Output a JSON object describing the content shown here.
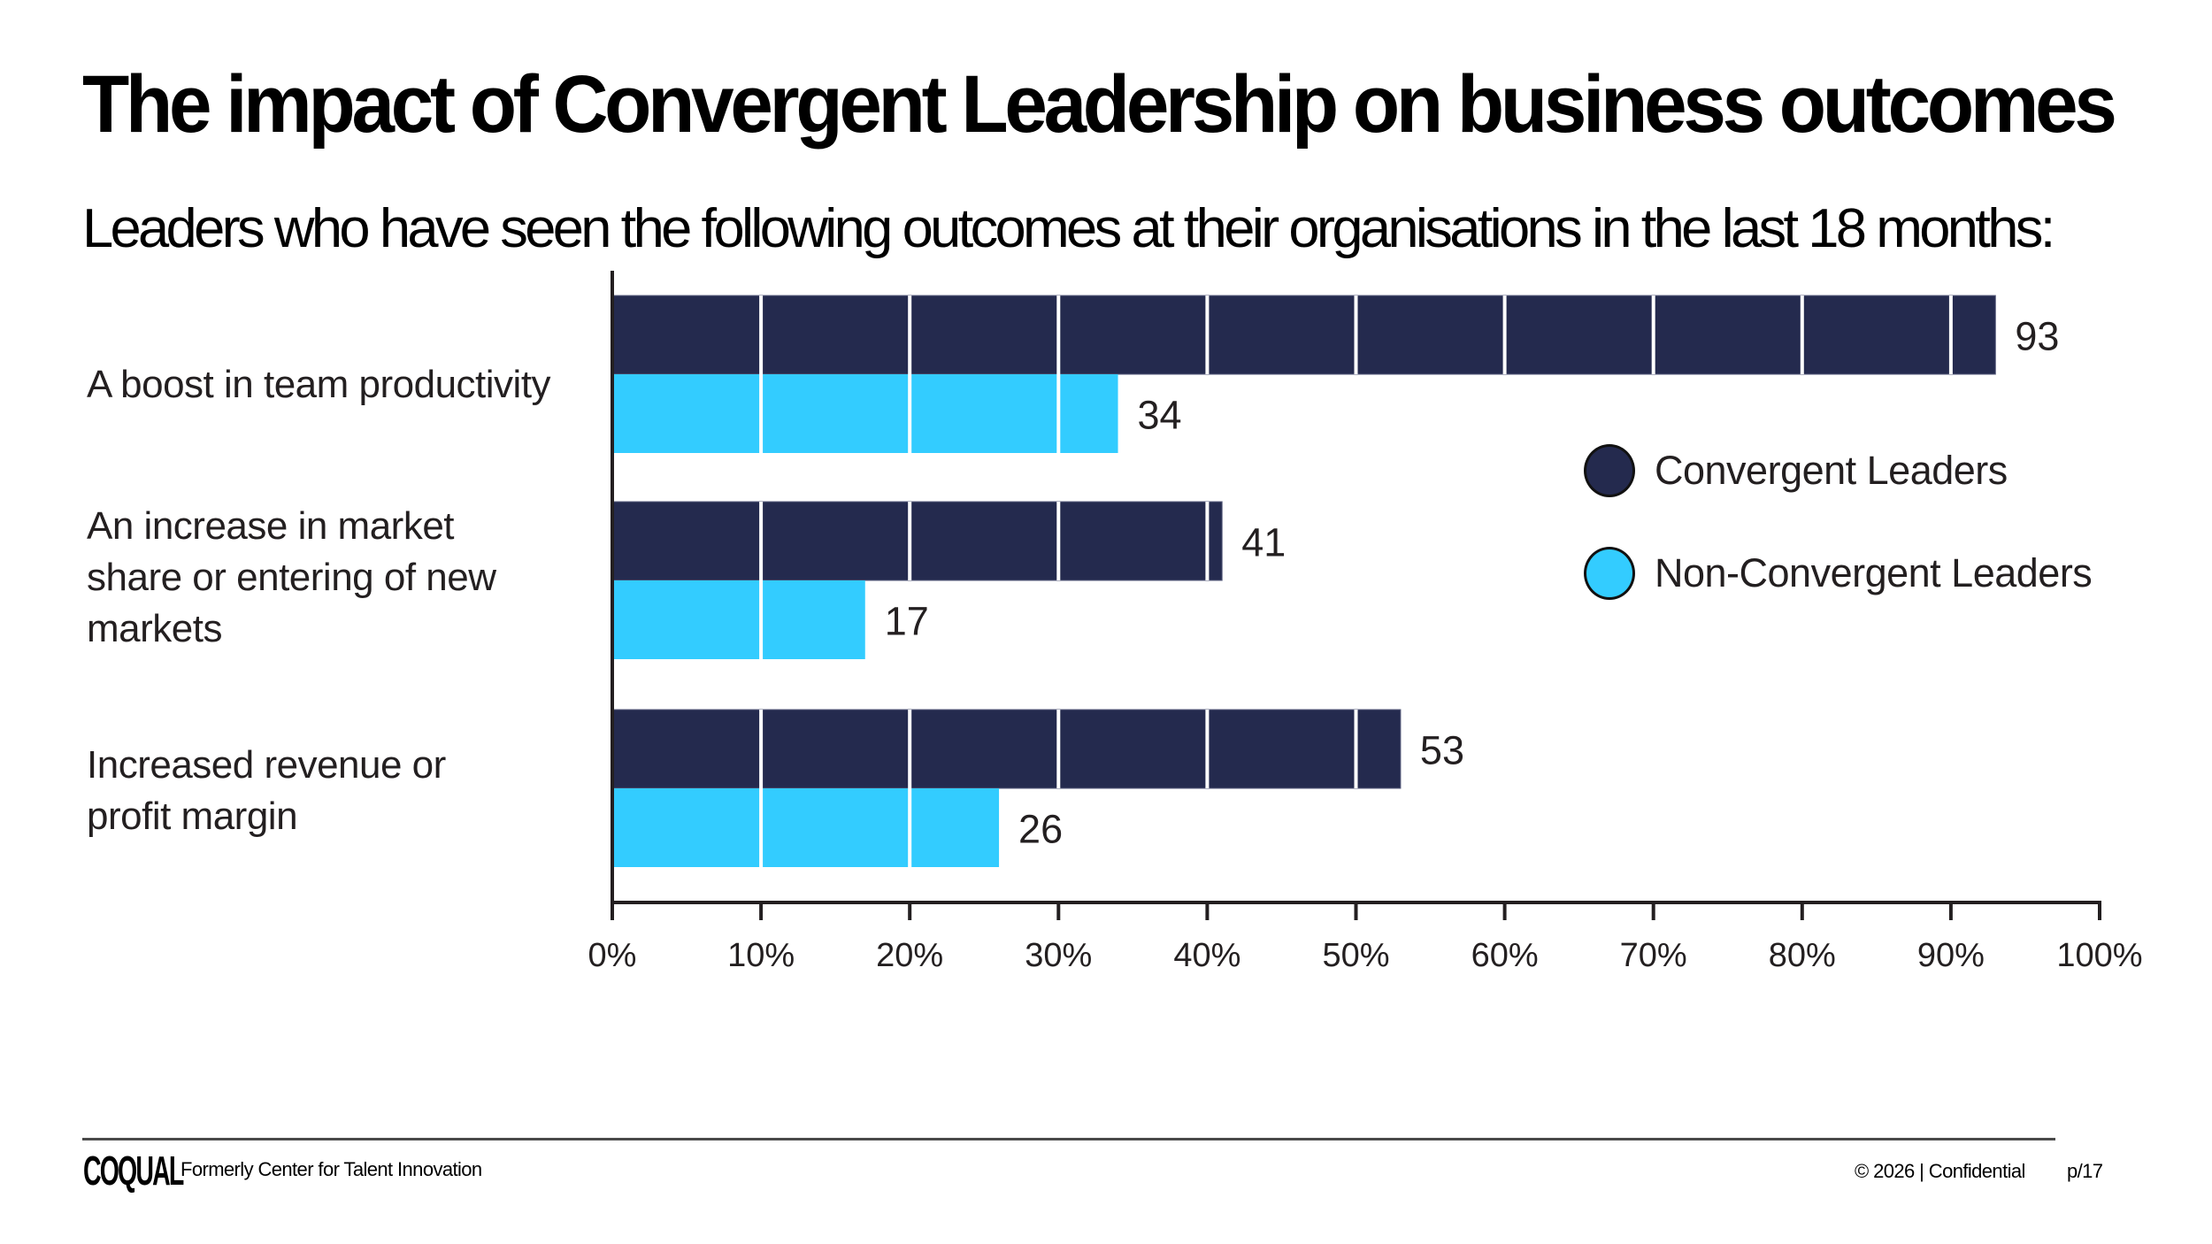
{
  "header": {
    "title": "The impact of Convergent Leadership on business outcomes",
    "subtitle": "Leaders who have seen the following outcomes at their organisations in the last 18 months:"
  },
  "colors": {
    "convergent": "#242A4E",
    "non_convergent": "#33CCFF",
    "text": "#231F20",
    "axis": "#231F20"
  },
  "chart_data": {
    "type": "bar",
    "orientation": "horizontal",
    "title": "The impact of Convergent Leadership on business outcomes",
    "subtitle": "Leaders who have seen the following outcomes at their organisations in the last 18 months:",
    "categories": [
      "A boost in team productivity",
      "An increase in market share or entering of new markets",
      "Increased revenue or profit margin"
    ],
    "category_lines": [
      [
        "A boost in team productivity"
      ],
      [
        "An increase in market",
        "share or entering of new",
        "markets"
      ],
      [
        "Increased revenue or",
        "profit margin"
      ]
    ],
    "series": [
      {
        "name": "Convergent Leaders",
        "values": [
          93,
          41,
          53
        ]
      },
      {
        "name": "Non-Convergent Leaders",
        "values": [
          34,
          17,
          26
        ]
      }
    ],
    "xlabel": "",
    "ylabel": "",
    "xlim": [
      0,
      100
    ],
    "x_ticks": [
      0,
      10,
      20,
      30,
      40,
      50,
      60,
      70,
      80,
      90,
      100
    ],
    "x_tick_labels": [
      "0%",
      "10%",
      "20%",
      "30%",
      "40%",
      "50%",
      "60%",
      "70%",
      "80%",
      "90%",
      "100%"
    ],
    "grid": "vertical white lines inside bars every 10%",
    "legend_position": "right-middle"
  },
  "legend": {
    "items": [
      {
        "label": "Convergent Leaders"
      },
      {
        "label": "Non-Convergent Leaders"
      }
    ]
  },
  "footer": {
    "logo": "COQUAL",
    "note": "Formerly Center for Talent Innovation",
    "copyright": "© 2026 | Confidential",
    "page": "p/17"
  }
}
